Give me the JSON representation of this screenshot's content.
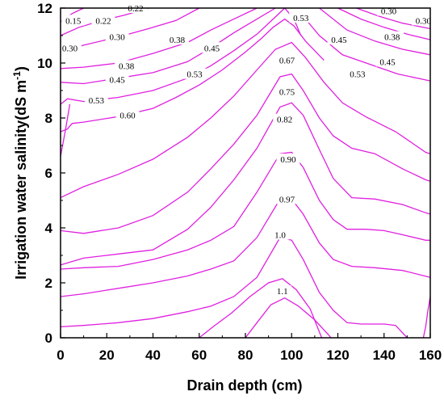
{
  "chart_data": {
    "type": "contour",
    "xlabel": "Drain depth (cm)",
    "ylabel_main": "Irrigation water salinity(dS m",
    "ylabel_sup": "-1",
    "ylabel_close": ")",
    "xlim": [
      0,
      160
    ],
    "ylim": [
      0,
      12
    ],
    "x_ticks": [
      0,
      20,
      40,
      60,
      80,
      100,
      120,
      140,
      160
    ],
    "y_ticks": [
      0,
      2,
      4,
      6,
      8,
      10,
      12
    ],
    "line_color": "#e020e0",
    "grid": false,
    "contours": [
      {
        "level": "0.15",
        "points": [
          [
            0,
            11.5
          ],
          [
            5,
            11.8
          ],
          [
            10,
            12.0
          ]
        ]
      },
      {
        "level": "0.22",
        "points": [
          [
            0,
            11.0
          ],
          [
            8,
            11.3
          ],
          [
            18,
            11.55
          ],
          [
            28,
            11.75
          ],
          [
            38,
            12.0
          ]
        ]
      },
      {
        "level": "0.30",
        "points": [
          [
            0,
            10.4
          ],
          [
            10,
            10.65
          ],
          [
            25,
            10.95
          ],
          [
            38,
            11.25
          ],
          [
            50,
            11.55
          ],
          [
            60,
            12.0
          ]
        ]
      },
      {
        "level": "0.38",
        "points": [
          [
            0,
            9.8
          ],
          [
            10,
            9.85
          ],
          [
            25,
            10.0
          ],
          [
            40,
            10.35
          ],
          [
            55,
            10.75
          ],
          [
            65,
            11.2
          ],
          [
            75,
            11.6
          ],
          [
            85,
            12.0
          ]
        ]
      },
      {
        "level": "0.45",
        "points": [
          [
            0,
            9.3
          ],
          [
            10,
            9.25
          ],
          [
            25,
            9.45
          ],
          [
            40,
            9.65
          ],
          [
            55,
            10.05
          ],
          [
            65,
            10.55
          ],
          [
            75,
            11.1
          ],
          [
            85,
            11.6
          ],
          [
            93,
            12.0
          ]
        ]
      },
      {
        "level": "0.53",
        "points": [
          [
            0,
            8.5
          ],
          [
            3,
            8.7
          ],
          [
            10,
            8.6
          ],
          [
            25,
            8.75
          ],
          [
            40,
            9.0
          ],
          [
            55,
            9.45
          ],
          [
            65,
            9.9
          ],
          [
            75,
            10.45
          ],
          [
            85,
            11.05
          ],
          [
            92,
            11.6
          ],
          [
            97,
            12.0
          ],
          [
            101,
            11.6
          ],
          [
            104,
            11.0
          ]
        ]
      },
      {
        "level": "0.60",
        "points": [
          [
            0,
            7.5
          ],
          [
            3,
            7.6
          ],
          [
            5,
            7.8
          ],
          [
            10,
            7.85
          ],
          [
            25,
            8.05
          ],
          [
            40,
            8.35
          ],
          [
            50,
            8.75
          ],
          [
            60,
            9.2
          ],
          [
            70,
            9.75
          ],
          [
            80,
            10.4
          ],
          [
            87,
            10.9
          ],
          [
            92,
            11.3
          ],
          [
            97,
            11.6
          ],
          [
            101,
            11.35
          ],
          [
            106,
            10.8
          ],
          [
            114,
            10.1
          ]
        ]
      },
      {
        "level": "0.67",
        "points": [
          [
            0,
            5.1
          ],
          [
            10,
            5.5
          ],
          [
            25,
            5.95
          ],
          [
            40,
            6.5
          ],
          [
            55,
            7.3
          ],
          [
            65,
            8.0
          ],
          [
            75,
            8.8
          ],
          [
            85,
            9.75
          ],
          [
            93,
            10.5
          ],
          [
            100,
            10.75
          ],
          [
            106,
            10.2
          ],
          [
            114,
            9.3
          ],
          [
            122,
            8.55
          ],
          [
            132,
            8.05
          ],
          [
            145,
            7.5
          ],
          [
            158,
            6.75
          ],
          [
            160,
            6.7
          ]
        ]
      },
      {
        "level": "0.75",
        "points": [
          [
            0,
            3.9
          ],
          [
            10,
            3.8
          ],
          [
            25,
            4.0
          ],
          [
            40,
            4.45
          ],
          [
            55,
            5.3
          ],
          [
            65,
            6.15
          ],
          [
            75,
            7.05
          ],
          [
            85,
            8.1
          ],
          [
            95,
            9.5
          ],
          [
            100,
            9.6
          ],
          [
            105,
            9.0
          ],
          [
            112,
            8.0
          ],
          [
            118,
            7.35
          ],
          [
            126,
            6.9
          ],
          [
            136,
            6.7
          ],
          [
            148,
            6.15
          ],
          [
            158,
            5.75
          ],
          [
            160,
            5.7
          ]
        ]
      },
      {
        "level": "0.82",
        "points": [
          [
            0,
            2.65
          ],
          [
            10,
            2.9
          ],
          [
            25,
            3.05
          ],
          [
            40,
            3.2
          ],
          [
            55,
            3.95
          ],
          [
            65,
            4.75
          ],
          [
            75,
            5.75
          ],
          [
            85,
            6.9
          ],
          [
            95,
            8.4
          ],
          [
            100,
            8.55
          ],
          [
            105,
            8.1
          ],
          [
            112,
            6.85
          ],
          [
            118,
            5.8
          ],
          [
            126,
            5.1
          ],
          [
            136,
            5.05
          ],
          [
            148,
            4.85
          ],
          [
            158,
            4.55
          ],
          [
            160,
            4.5
          ]
        ]
      },
      {
        "level": "0.90",
        "points": [
          [
            0,
            2.5
          ],
          [
            10,
            2.55
          ],
          [
            25,
            2.6
          ],
          [
            40,
            2.85
          ],
          [
            55,
            3.2
          ],
          [
            65,
            3.55
          ],
          [
            75,
            4.05
          ],
          [
            85,
            5.3
          ],
          [
            95,
            6.7
          ],
          [
            100,
            6.75
          ],
          [
            105,
            6.2
          ],
          [
            112,
            5.0
          ],
          [
            118,
            4.3
          ],
          [
            124,
            3.95
          ],
          [
            132,
            3.95
          ],
          [
            140,
            3.9
          ],
          [
            148,
            3.75
          ],
          [
            158,
            3.55
          ],
          [
            160,
            3.55
          ]
        ]
      },
      {
        "level": "0.97",
        "points": [
          [
            0,
            1.5
          ],
          [
            10,
            1.6
          ],
          [
            25,
            1.8
          ],
          [
            40,
            2.0
          ],
          [
            55,
            2.25
          ],
          [
            65,
            2.5
          ],
          [
            75,
            2.8
          ],
          [
            85,
            3.65
          ],
          [
            95,
            5.05
          ],
          [
            100,
            5.05
          ],
          [
            105,
            4.5
          ],
          [
            112,
            3.45
          ],
          [
            118,
            2.85
          ],
          [
            126,
            2.6
          ],
          [
            136,
            2.55
          ],
          [
            148,
            2.45
          ],
          [
            160,
            2.2
          ]
        ]
      },
      {
        "level": "1.0",
        "points": [
          [
            0,
            0.4
          ],
          [
            10,
            0.45
          ],
          [
            25,
            0.55
          ],
          [
            40,
            0.7
          ],
          [
            55,
            0.95
          ],
          [
            65,
            1.15
          ],
          [
            75,
            1.5
          ],
          [
            85,
            2.2
          ],
          [
            95,
            3.65
          ],
          [
            100,
            3.55
          ],
          [
            105,
            2.85
          ],
          [
            112,
            1.65
          ],
          [
            118,
            1.0
          ],
          [
            124,
            0.55
          ],
          [
            130,
            0.5
          ],
          [
            140,
            0.5
          ],
          [
            145,
            0.45
          ],
          [
            150,
            0.0
          ]
        ]
      },
      {
        "level": "1.1",
        "points": [
          [
            60,
            0.0
          ],
          [
            66,
            0.4
          ],
          [
            74,
            0.9
          ],
          [
            82,
            1.5
          ],
          [
            90,
            2.0
          ],
          [
            96,
            2.15
          ],
          [
            102,
            1.75
          ],
          [
            108,
            1.05
          ],
          [
            113,
            0.0
          ]
        ]
      },
      {
        "level": "",
        "points": [
          [
            80,
            0.0
          ],
          [
            85,
            0.55
          ],
          [
            91,
            1.2
          ],
          [
            97,
            1.45
          ],
          [
            103,
            1.15
          ],
          [
            110,
            0.65
          ],
          [
            116,
            0.1
          ],
          [
            117,
            0.0
          ]
        ]
      },
      {
        "level": "",
        "points": [
          [
            0,
            6.6
          ],
          [
            2,
            7.5
          ],
          [
            4,
            8.5
          ]
        ]
      },
      {
        "level": "",
        "points": [
          [
            157,
            0.0
          ],
          [
            158,
            0.4
          ],
          [
            159,
            1.0
          ],
          [
            160,
            1.5
          ]
        ]
      },
      {
        "level": "0.30",
        "points": [
          [
            120,
            12.0
          ],
          [
            130,
            11.6
          ],
          [
            140,
            11.3
          ],
          [
            150,
            11.05
          ],
          [
            160,
            10.85
          ]
        ]
      },
      {
        "level": "0.30",
        "points": [
          [
            128,
            12.0
          ],
          [
            138,
            11.7
          ],
          [
            148,
            11.45
          ],
          [
            160,
            11.25
          ]
        ]
      },
      {
        "level": "0.38",
        "points": [
          [
            112,
            12.0
          ],
          [
            124,
            11.2
          ],
          [
            136,
            10.8
          ],
          [
            148,
            10.5
          ],
          [
            160,
            10.3
          ]
        ]
      },
      {
        "level": "0.45",
        "points": [
          [
            104,
            11.8
          ],
          [
            112,
            11.0
          ],
          [
            122,
            10.3
          ],
          [
            134,
            9.95
          ],
          [
            146,
            9.6
          ],
          [
            160,
            9.35
          ]
        ]
      }
    ],
    "label_positions": [
      {
        "text": "0.15",
        "x": 5.5,
        "y": 11.55
      },
      {
        "text": "0.22",
        "x": 18.5,
        "y": 11.55
      },
      {
        "text": "0.22",
        "x": 32.5,
        "y": 12.0
      },
      {
        "text": "0.30",
        "x": 4,
        "y": 10.55
      },
      {
        "text": "0.30",
        "x": 24.5,
        "y": 10.95
      },
      {
        "text": "0.38",
        "x": 28.5,
        "y": 9.9
      },
      {
        "text": "0.38",
        "x": 50.5,
        "y": 10.85
      },
      {
        "text": "0.45",
        "x": 24.5,
        "y": 9.4
      },
      {
        "text": "0.45",
        "x": 65.5,
        "y": 10.55
      },
      {
        "text": "0.53",
        "x": 15.5,
        "y": 8.65
      },
      {
        "text": "0.53",
        "x": 58,
        "y": 9.6
      },
      {
        "text": "0.60",
        "x": 29,
        "y": 8.1
      },
      {
        "text": "0.53",
        "x": 104,
        "y": 11.65
      },
      {
        "text": "0.45",
        "x": 120.5,
        "y": 10.85
      },
      {
        "text": "0.53",
        "x": 128.5,
        "y": 9.6
      },
      {
        "text": "0.45",
        "x": 141.5,
        "y": 10.05
      },
      {
        "text": "0.38",
        "x": 143.5,
        "y": 10.95
      },
      {
        "text": "0.30",
        "x": 142,
        "y": 11.9
      },
      {
        "text": "0.30",
        "x": 157,
        "y": 11.55
      },
      {
        "text": "0.67",
        "x": 98,
        "y": 10.1
      },
      {
        "text": "0.75",
        "x": 98,
        "y": 8.95
      },
      {
        "text": "0.82",
        "x": 97,
        "y": 7.95
      },
      {
        "text": "0.90",
        "x": 98.5,
        "y": 6.5
      },
      {
        "text": "0.97",
        "x": 98,
        "y": 5.05
      },
      {
        "text": "1.0",
        "x": 95,
        "y": 3.75
      },
      {
        "text": "1.1",
        "x": 96,
        "y": 1.7
      }
    ]
  }
}
